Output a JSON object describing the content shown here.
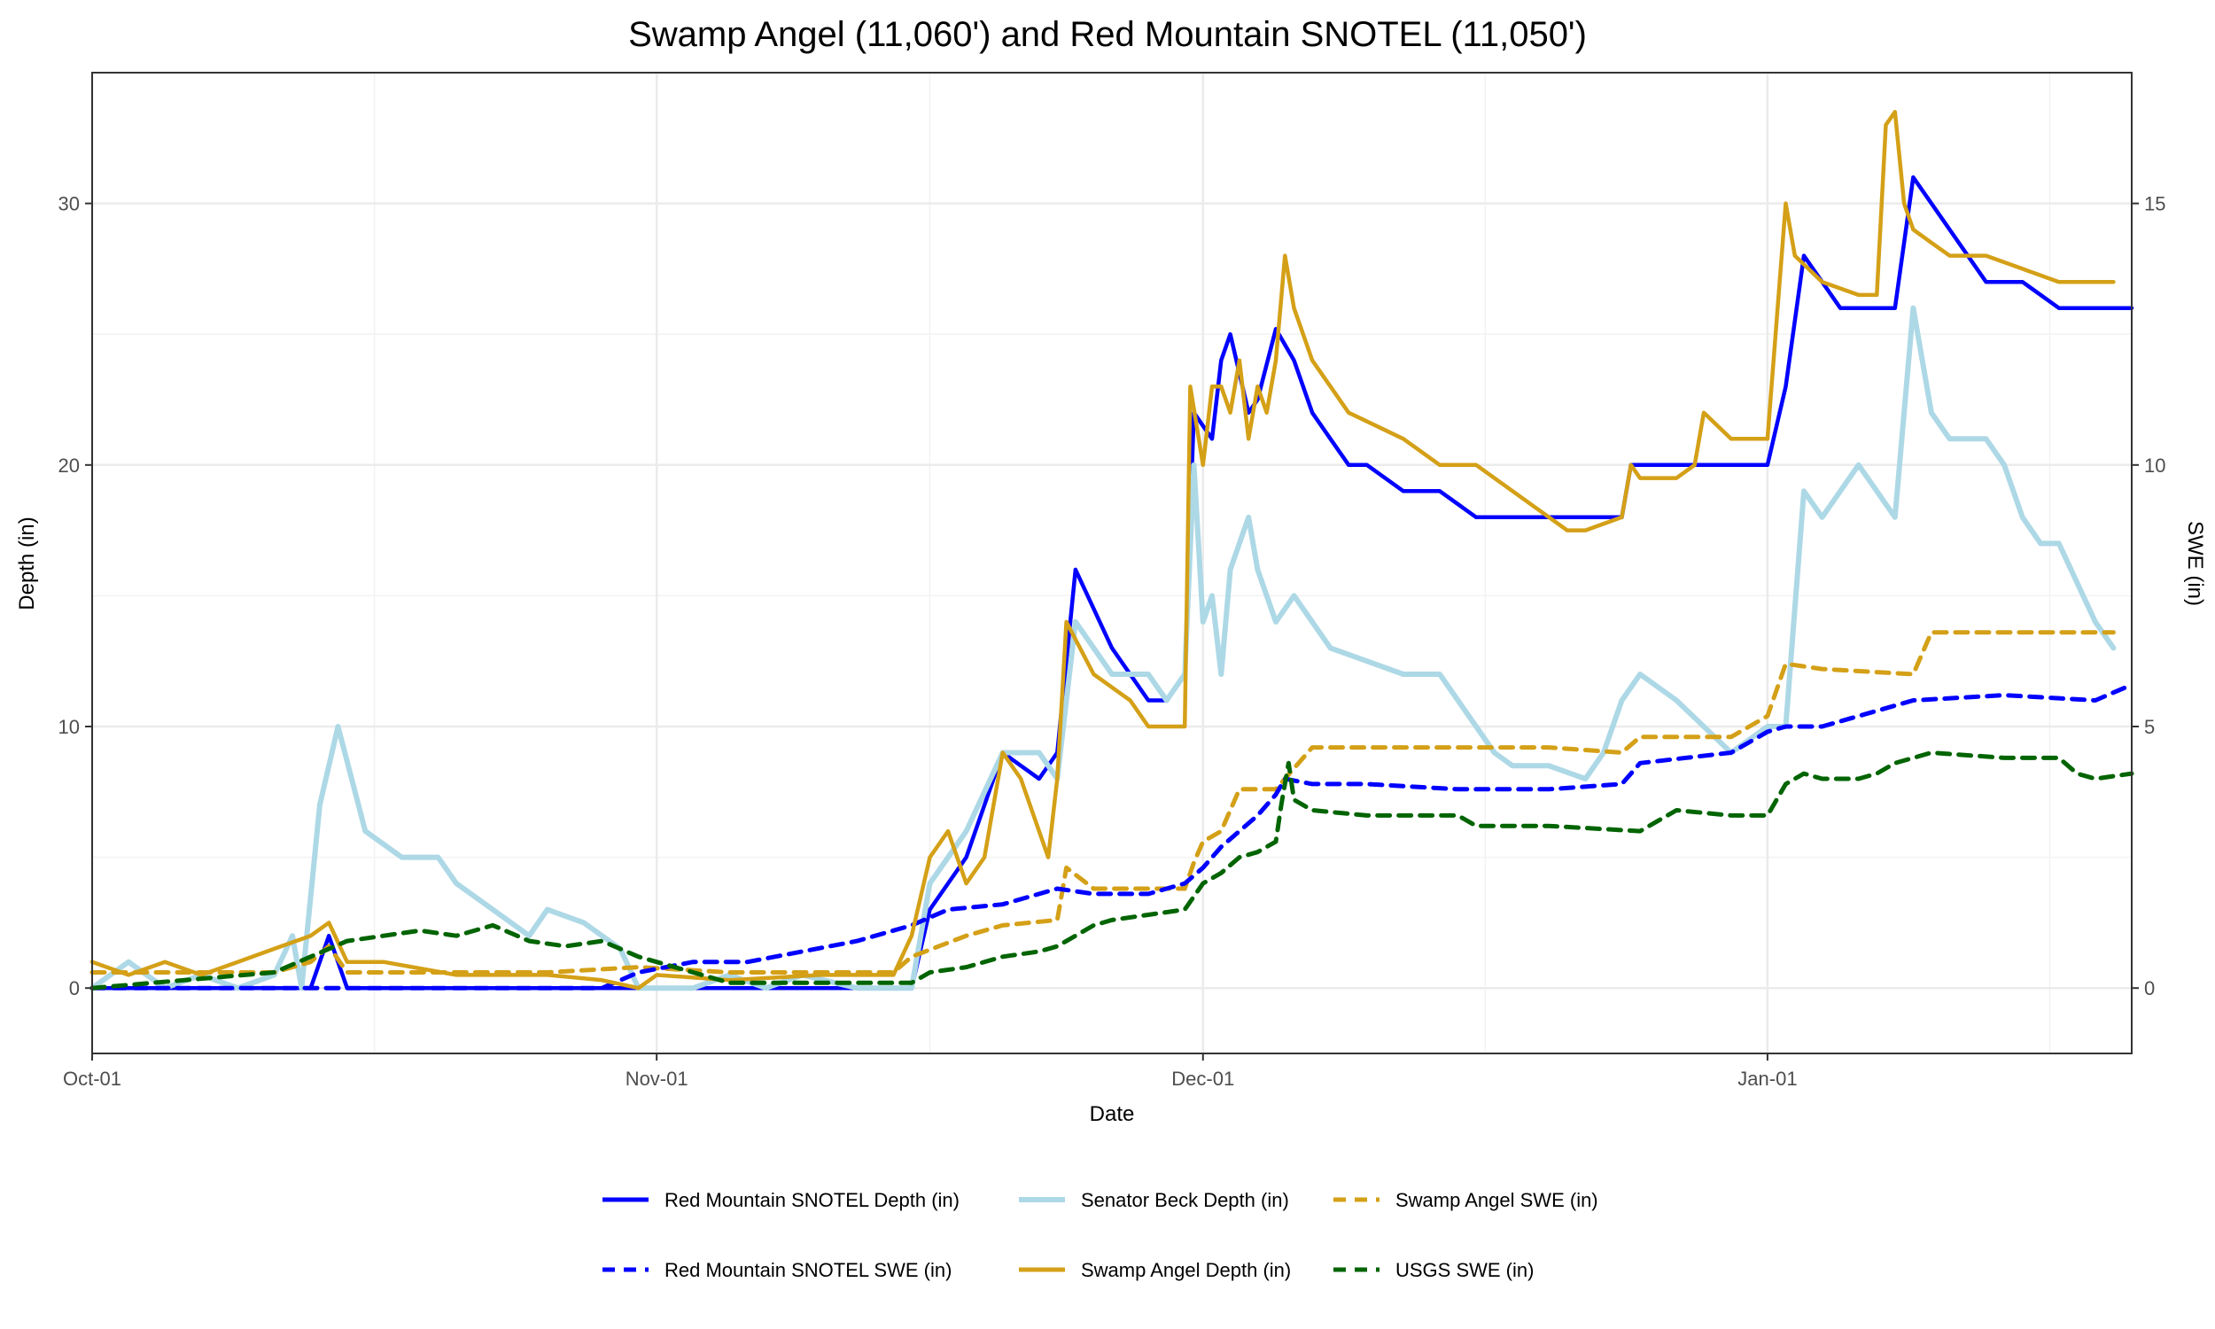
{
  "chart_data": {
    "type": "line",
    "title": "Swamp Angel (11,060') and Red Mountain SNOTEL (11,050')",
    "xlabel": "Date",
    "ylabel_left": "Depth (in)",
    "ylabel_right": "SWE (in)",
    "x_unit": "days since Oct-01",
    "xlim": [
      0,
      112
    ],
    "ylim_left": [
      -2.5,
      35
    ],
    "ylim_right": [
      -1.25,
      17.5
    ],
    "y_left_ticks": [
      0,
      10,
      20,
      30
    ],
    "y_left_tick_labels": [
      "0",
      "10",
      "20",
      "30"
    ],
    "y_right_ticks": [
      0,
      5,
      10,
      15
    ],
    "y_right_tick_labels": [
      "0",
      "5",
      "10",
      "15"
    ],
    "x_ticks": [
      0,
      31,
      61,
      92
    ],
    "x_tick_labels": [
      "Oct-01",
      "Nov-01",
      "Dec-01",
      "Jan-01"
    ],
    "grid": true,
    "legend_position": "bottom",
    "series": [
      {
        "name": "Red Mountain SNOTEL Depth (in)",
        "color": "#0000ff",
        "axis": "left",
        "style": "solid",
        "x": [
          0,
          12,
          13,
          14,
          35,
          45,
          46,
          48,
          50,
          52,
          53,
          54,
          56,
          58,
          59,
          60,
          60.5,
          61.5,
          62,
          62.5,
          63.5,
          64,
          65,
          66,
          67,
          68,
          69,
          70,
          72,
          74,
          76,
          78,
          79,
          80,
          84,
          84.5,
          90,
          92,
          93,
          94,
          96,
          98,
          99,
          100,
          102,
          104,
          106,
          108,
          112
        ],
        "values": [
          0,
          0,
          2,
          0,
          0,
          0,
          3,
          5,
          9,
          8,
          9,
          16,
          13,
          11,
          11,
          12,
          22,
          21,
          24,
          25,
          22,
          22.5,
          25.2,
          24,
          22,
          21,
          20,
          20,
          19,
          19,
          18,
          18,
          18,
          18,
          18,
          20,
          20,
          20,
          23,
          28,
          26,
          26,
          26,
          31,
          29,
          27,
          27,
          26,
          26
        ]
      },
      {
        "name": "Senator Beck Depth (in)",
        "color": "#add8e6",
        "axis": "left",
        "style": "solid",
        "x": [
          0,
          2,
          4,
          6,
          8,
          10,
          11,
          11.5,
          12.5,
          13.5,
          15,
          17,
          19,
          20,
          22,
          24,
          25,
          27,
          28,
          29,
          30,
          31,
          33,
          35,
          37,
          39,
          42,
          45,
          46,
          48,
          50,
          52,
          53,
          54,
          56,
          58,
          59,
          60,
          60.5,
          61,
          61.5,
          62,
          62.5,
          63.5,
          64,
          65,
          66,
          67,
          68,
          70,
          72,
          74,
          76,
          77,
          78,
          80,
          82,
          83,
          84,
          85,
          87,
          90,
          91,
          92,
          93,
          94,
          95,
          96,
          97,
          98,
          99,
          100,
          101,
          102,
          104,
          105,
          106,
          107,
          108,
          110,
          111
        ],
        "values": [
          0,
          1,
          0,
          0.5,
          0,
          0.5,
          2,
          0,
          7,
          10,
          6,
          5,
          5,
          4,
          3,
          2,
          3,
          2.5,
          2,
          1.5,
          0,
          0,
          0,
          0.5,
          0,
          0.5,
          0,
          0,
          4,
          6,
          9,
          9,
          8,
          14,
          12,
          12,
          11,
          12,
          20,
          14,
          15,
          12,
          16,
          18,
          16,
          14,
          15,
          14,
          13,
          12.5,
          12,
          12,
          10,
          9,
          8.5,
          8.5,
          8,
          9,
          11,
          12,
          11,
          9,
          9.5,
          10,
          10,
          19,
          18,
          19,
          20,
          19,
          18,
          26,
          22,
          21,
          21,
          20,
          18,
          17,
          17,
          14,
          13
        ]
      },
      {
        "name": "Swamp Angel SWE (in)",
        "color": "#d4a017",
        "axis": "right",
        "style": "dashed",
        "x": [
          0,
          5,
          10,
          12,
          13,
          14,
          20,
          25,
          30,
          35,
          40,
          44,
          45,
          48,
          50,
          53,
          53.5,
          55,
          60,
          60.5,
          61,
          62,
          63,
          64,
          65,
          66,
          67,
          70,
          75,
          80,
          84,
          85,
          90,
          92,
          93,
          95,
          100,
          101,
          105,
          110,
          111
        ],
        "values": [
          0.3,
          0.3,
          0.3,
          0.5,
          0.8,
          0.3,
          0.3,
          0.3,
          0.4,
          0.3,
          0.3,
          0.3,
          0.6,
          1.0,
          1.2,
          1.3,
          2.3,
          1.9,
          1.9,
          2.4,
          2.8,
          3.0,
          3.8,
          3.8,
          3.8,
          4.2,
          4.6,
          4.6,
          4.6,
          4.6,
          4.5,
          4.8,
          4.8,
          5.2,
          6.2,
          6.1,
          6.0,
          6.8,
          6.8,
          6.8,
          6.8
        ]
      },
      {
        "name": "Red Mountain SNOTEL SWE (in)",
        "color": "#0000ff",
        "axis": "right",
        "style": "dashed",
        "x": [
          0,
          10,
          20,
          28,
          30,
          33,
          36,
          39,
          42,
          45,
          47,
          50,
          53,
          55,
          58,
          60,
          61,
          62,
          63,
          64,
          65,
          65.5,
          67,
          70,
          75,
          80,
          84,
          85,
          90,
          91,
          92,
          93,
          95,
          98,
          100,
          105,
          110,
          112
        ],
        "values": [
          0,
          0,
          0,
          0,
          0.3,
          0.5,
          0.5,
          0.7,
          0.9,
          1.2,
          1.5,
          1.6,
          1.9,
          1.8,
          1.8,
          2.0,
          2.3,
          2.7,
          3.0,
          3.3,
          3.7,
          4.0,
          3.9,
          3.9,
          3.8,
          3.8,
          3.9,
          4.3,
          4.5,
          4.7,
          4.9,
          5.0,
          5.0,
          5.3,
          5.5,
          5.6,
          5.5,
          5.8
        ]
      },
      {
        "name": "Swamp Angel Depth (in)",
        "color": "#d4a017",
        "axis": "left",
        "style": "solid",
        "x": [
          0,
          2,
          4,
          6,
          8,
          10,
          12,
          13,
          14,
          16,
          20,
          25,
          28,
          30,
          31,
          35,
          40,
          44,
          45,
          46,
          47,
          48,
          49,
          50,
          51,
          52,
          52.5,
          53,
          53.5,
          55,
          57,
          58,
          59,
          60,
          60.3,
          61,
          61.5,
          62,
          62.5,
          63,
          63.5,
          64,
          64.5,
          65,
          65.5,
          66,
          67,
          69,
          72,
          74,
          76,
          78,
          79,
          80,
          81,
          82,
          84,
          84.5,
          85,
          87,
          88,
          88.5,
          90,
          92,
          93,
          93.5,
          95,
          97,
          98,
          98.5,
          99,
          99.5,
          100,
          101,
          102,
          104,
          106,
          108,
          110,
          111
        ],
        "values": [
          1,
          0.5,
          1,
          0.5,
          1,
          1.5,
          2,
          2.5,
          1,
          1,
          0.5,
          0.5,
          0.3,
          0,
          0.5,
          0.3,
          0.5,
          0.5,
          2,
          5,
          6,
          4,
          5,
          9,
          8,
          6,
          5,
          8,
          14,
          12,
          11,
          10,
          10,
          10,
          23,
          20,
          23,
          23,
          22,
          24,
          21,
          23,
          22,
          24,
          28,
          26,
          24,
          22,
          21,
          20,
          20,
          19,
          18.5,
          18,
          17.5,
          17.5,
          18,
          20,
          19.5,
          19.5,
          20,
          22,
          21,
          21,
          30,
          28,
          27,
          26.5,
          26.5,
          33,
          33.5,
          30,
          29,
          28.5,
          28,
          28,
          27.5,
          27,
          27,
          27
        ]
      },
      {
        "name": "USGS SWE (in)",
        "color": "#006400",
        "axis": "right",
        "style": "dashed",
        "x": [
          0,
          10,
          12,
          14,
          16,
          18,
          20,
          22,
          24,
          26,
          28,
          30,
          33,
          35,
          40,
          45,
          46,
          48,
          50,
          52,
          53,
          54,
          55,
          56,
          58,
          60,
          61,
          62,
          63,
          64,
          65,
          65.3,
          65.7,
          66,
          67,
          70,
          75,
          76,
          80,
          85,
          86,
          87,
          90,
          92,
          93,
          94,
          95,
          97,
          98,
          99,
          100,
          101,
          105,
          108,
          109,
          110,
          112
        ],
        "values": [
          0,
          0.3,
          0.6,
          0.9,
          1.0,
          1.1,
          1.0,
          1.2,
          0.9,
          0.8,
          0.9,
          0.6,
          0.3,
          0.1,
          0.1,
          0.1,
          0.3,
          0.4,
          0.6,
          0.7,
          0.8,
          1.0,
          1.2,
          1.3,
          1.4,
          1.5,
          2.0,
          2.2,
          2.5,
          2.6,
          2.8,
          3.5,
          4.3,
          3.6,
          3.4,
          3.3,
          3.3,
          3.1,
          3.1,
          3.0,
          3.2,
          3.4,
          3.3,
          3.3,
          3.9,
          4.1,
          4.0,
          4.0,
          4.1,
          4.3,
          4.4,
          4.5,
          4.4,
          4.4,
          4.1,
          4.0,
          4.1
        ]
      }
    ],
    "legend_rows": [
      [
        0,
        1,
        2
      ],
      [
        3,
        4,
        5
      ]
    ]
  }
}
